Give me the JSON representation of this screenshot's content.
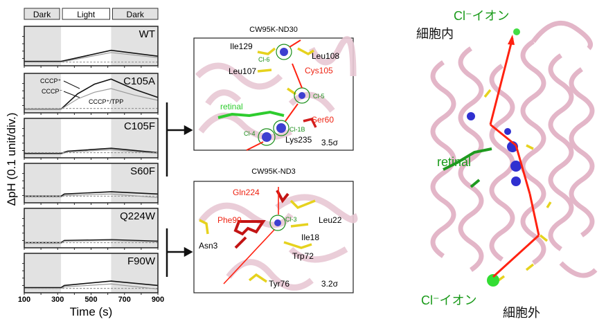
{
  "chart_data": {
    "type": "line",
    "xlabel": "Time (s)",
    "ylabel": "ΔpH (0.1 unit/div.)",
    "xlim": [
      100,
      900
    ],
    "ylim": [
      0,
      5
    ],
    "xticks": [
      100,
      300,
      500,
      700,
      900
    ],
    "periods": [
      {
        "label": "Dark",
        "from": 100,
        "to": 320
      },
      {
        "label": "Light",
        "from": 320,
        "to": 620
      },
      {
        "label": "Dark",
        "from": 620,
        "to": 900
      }
    ],
    "colors": {
      "cccp_plus": "#111111",
      "cccp_minus": "#999999",
      "tpp": "#999999",
      "dark_bg": "#e2e2e2"
    },
    "panels": [
      {
        "name": "WT",
        "series": [
          {
            "style": "cccp_plus",
            "x": [
              100,
              320,
              620,
              900
            ],
            "y": [
              0.6,
              0.6,
              2.1,
              1.3
            ]
          },
          {
            "style": "cccp_minus",
            "x": [
              100,
              320,
              620,
              900
            ],
            "y": [
              0.5,
              0.5,
              1.8,
              1.1
            ]
          },
          {
            "style": "tpp",
            "x": [
              100,
              900
            ],
            "y": [
              0.5,
              0.5
            ]
          }
        ]
      },
      {
        "name": "C105A",
        "annotations": [
          "CCCP⁺",
          "CCCP⁻",
          "CCCP⁺/TPP"
        ],
        "series": [
          {
            "style": "cccp_plus",
            "x": [
              100,
              320,
              420,
              520,
              620,
              760,
              900
            ],
            "y": [
              0.5,
              0.5,
              2.6,
              3.9,
              4.6,
              3.2,
              2.1
            ]
          },
          {
            "style": "cccp_minus",
            "x": [
              100,
              320,
              420,
              520,
              620,
              760,
              900
            ],
            "y": [
              0.5,
              0.5,
              1.9,
              2.8,
              3.3,
              2.4,
              1.7
            ]
          },
          {
            "style": "tpp",
            "x": [
              100,
              900
            ],
            "y": [
              0.6,
              0.6
            ]
          }
        ]
      },
      {
        "name": "C105F",
        "series": [
          {
            "style": "cccp_plus",
            "x": [
              100,
              320,
              360,
              620,
              900
            ],
            "y": [
              0.6,
              0.6,
              0.9,
              1.3,
              0.7
            ]
          },
          {
            "style": "cccp_minus",
            "x": [
              100,
              320,
              360,
              620,
              900
            ],
            "y": [
              0.5,
              0.5,
              0.8,
              1.1,
              0.6
            ]
          },
          {
            "style": "tpp",
            "x": [
              100,
              900
            ],
            "y": [
              0.7,
              0.7
            ]
          }
        ]
      },
      {
        "name": "S60F",
        "series": [
          {
            "style": "cccp_plus",
            "x": [
              100,
              320,
              340,
              620,
              900
            ],
            "y": [
              0.9,
              0.9,
              1.2,
              1.5,
              1.2
            ]
          },
          {
            "style": "cccp_minus",
            "x": [
              100,
              320,
              340,
              620,
              900
            ],
            "y": [
              0.8,
              0.8,
              1.0,
              1.2,
              0.7
            ]
          },
          {
            "style": "tpp",
            "x": [
              100,
              900
            ],
            "y": [
              0.9,
              0.9
            ]
          }
        ]
      },
      {
        "name": "Q224W",
        "series": [
          {
            "style": "cccp_plus",
            "x": [
              100,
              320,
              340,
              620,
              900
            ],
            "y": [
              0.7,
              0.7,
              1.0,
              1.1,
              0.9
            ]
          },
          {
            "style": "cccp_minus",
            "x": [
              100,
              320,
              340,
              620,
              900
            ],
            "y": [
              0.6,
              0.6,
              0.9,
              1.0,
              0.8
            ]
          },
          {
            "style": "tpp",
            "x": [
              100,
              900
            ],
            "y": [
              0.7,
              0.7
            ]
          }
        ]
      },
      {
        "name": "F90W",
        "series": [
          {
            "style": "cccp_plus",
            "x": [
              100,
              320,
              340,
              620,
              900
            ],
            "y": [
              0.7,
              0.7,
              1.0,
              1.6,
              1.0
            ]
          },
          {
            "style": "cccp_minus",
            "x": [
              100,
              320,
              340,
              620,
              900
            ],
            "y": [
              0.6,
              0.6,
              0.8,
              1.2,
              0.5
            ]
          },
          {
            "style": "tpp",
            "x": [
              100,
              900
            ],
            "y": [
              0.6,
              0.6
            ]
          }
        ]
      }
    ]
  },
  "structures": {
    "top": {
      "title": "CW95K-ND30",
      "sigma": "3.5σ",
      "labels_black": [
        "Ile129",
        "Leu108",
        "Leu107",
        "Lys235"
      ],
      "labels_red": [
        "Cys105",
        "Ser60"
      ],
      "labels_green": [
        "Cl-6",
        "Cl-5",
        "Cl-4",
        "Cl-1B",
        "retinal"
      ]
    },
    "bottom": {
      "title": "CW95K-ND3",
      "sigma": "3.2σ",
      "labels_black": [
        "Leu22",
        "Asn3",
        "Ile18",
        "Trp72",
        "Tyr76"
      ],
      "labels_red": [
        "Gln224",
        "Phe90"
      ],
      "labels_green": [
        "Cl-3"
      ]
    }
  },
  "overview": {
    "ion_top": "Cl⁻イオン",
    "ion_bottom": "Cl⁻イオン",
    "intracellular": "細胞内",
    "extracellular": "細胞外",
    "retinal": "retinal"
  }
}
